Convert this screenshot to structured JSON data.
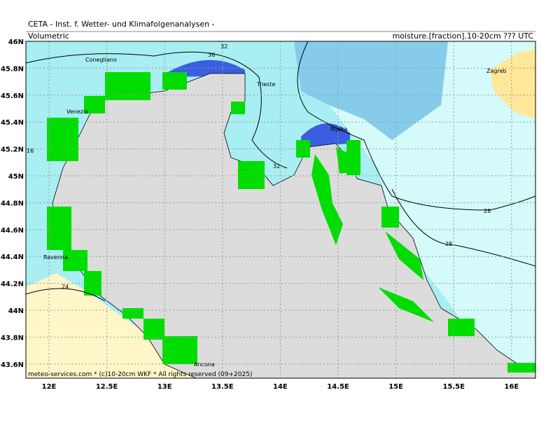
{
  "header": {
    "title": "CETA - Inst. f. Wetter- und Klimafolgenanalysen -",
    "left_label": "Volumetric",
    "right_label": "moisture.[fraction].10-20cm ??? UTC"
  },
  "axes": {
    "lat_labels": [
      "46N",
      "45.8N",
      "45.6N",
      "45.4N",
      "45.2N",
      "45N",
      "44.8N",
      "44.6N",
      "44.4N",
      "44.2N",
      "44N",
      "43.8N",
      "43.6N"
    ],
    "lon_labels": [
      "12E",
      "12.5E",
      "13E",
      "13.5E",
      "14E",
      "14.5E",
      "15E",
      "15.5E",
      "16E"
    ]
  },
  "contour_labels": [
    "32",
    "36",
    "32",
    "28",
    "28",
    "24",
    "16"
  ],
  "places": [
    "Conegliano",
    "Venezia",
    "Trieste",
    "Rijeka",
    "Zagreb",
    "Ravenna",
    "Ancona"
  ],
  "footer": "meteo-services.com * (c)10-20cm WKF * All rights reserved (09+2025)"
}
